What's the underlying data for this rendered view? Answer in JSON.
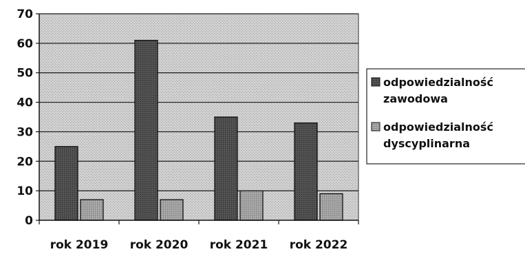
{
  "chart_data": {
    "type": "bar",
    "title": "",
    "xlabel": "",
    "ylabel": "",
    "categories": [
      "rok 2019",
      "rok 2020",
      "rok 2021",
      "rok 2022"
    ],
    "series": [
      {
        "name": "odpowiedzialność zawodowa",
        "legend_lines": [
          "odpowiedzialność",
          "zawodowa"
        ],
        "values": [
          25,
          61,
          35,
          33
        ],
        "color": "#505050"
      },
      {
        "name": "odpowiedzialność dyscyplinarna",
        "legend_lines": [
          "odpowiedzialność",
          "dyscyplinarna"
        ],
        "values": [
          7,
          7,
          10,
          9
        ],
        "color": "#9a9a9a"
      }
    ],
    "ylim": [
      0,
      70
    ],
    "yticks": [
      0,
      10,
      20,
      30,
      40,
      50,
      60,
      70
    ],
    "grid": true,
    "legend": "right",
    "plot_background": "#cfcfcf"
  }
}
